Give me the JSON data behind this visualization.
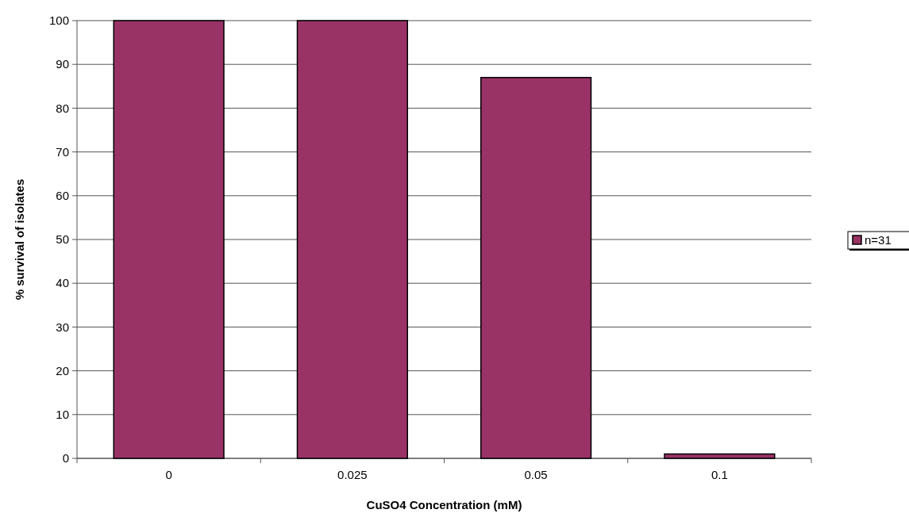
{
  "chart_data": {
    "type": "bar",
    "xlabel": "CuSO4 Concentration (mM)",
    "ylabel": "% survival of isolates",
    "categories": [
      "0",
      "0.025",
      "0.05",
      "0.1"
    ],
    "series": [
      {
        "name": "n=31",
        "color": "#993366",
        "values": [
          100,
          100,
          87,
          1
        ]
      }
    ],
    "ylim": [
      0,
      100
    ],
    "yticks": [
      0,
      10,
      20,
      30,
      40,
      50,
      60,
      70,
      80,
      90,
      100
    ],
    "grid": "y",
    "legend": "right"
  }
}
